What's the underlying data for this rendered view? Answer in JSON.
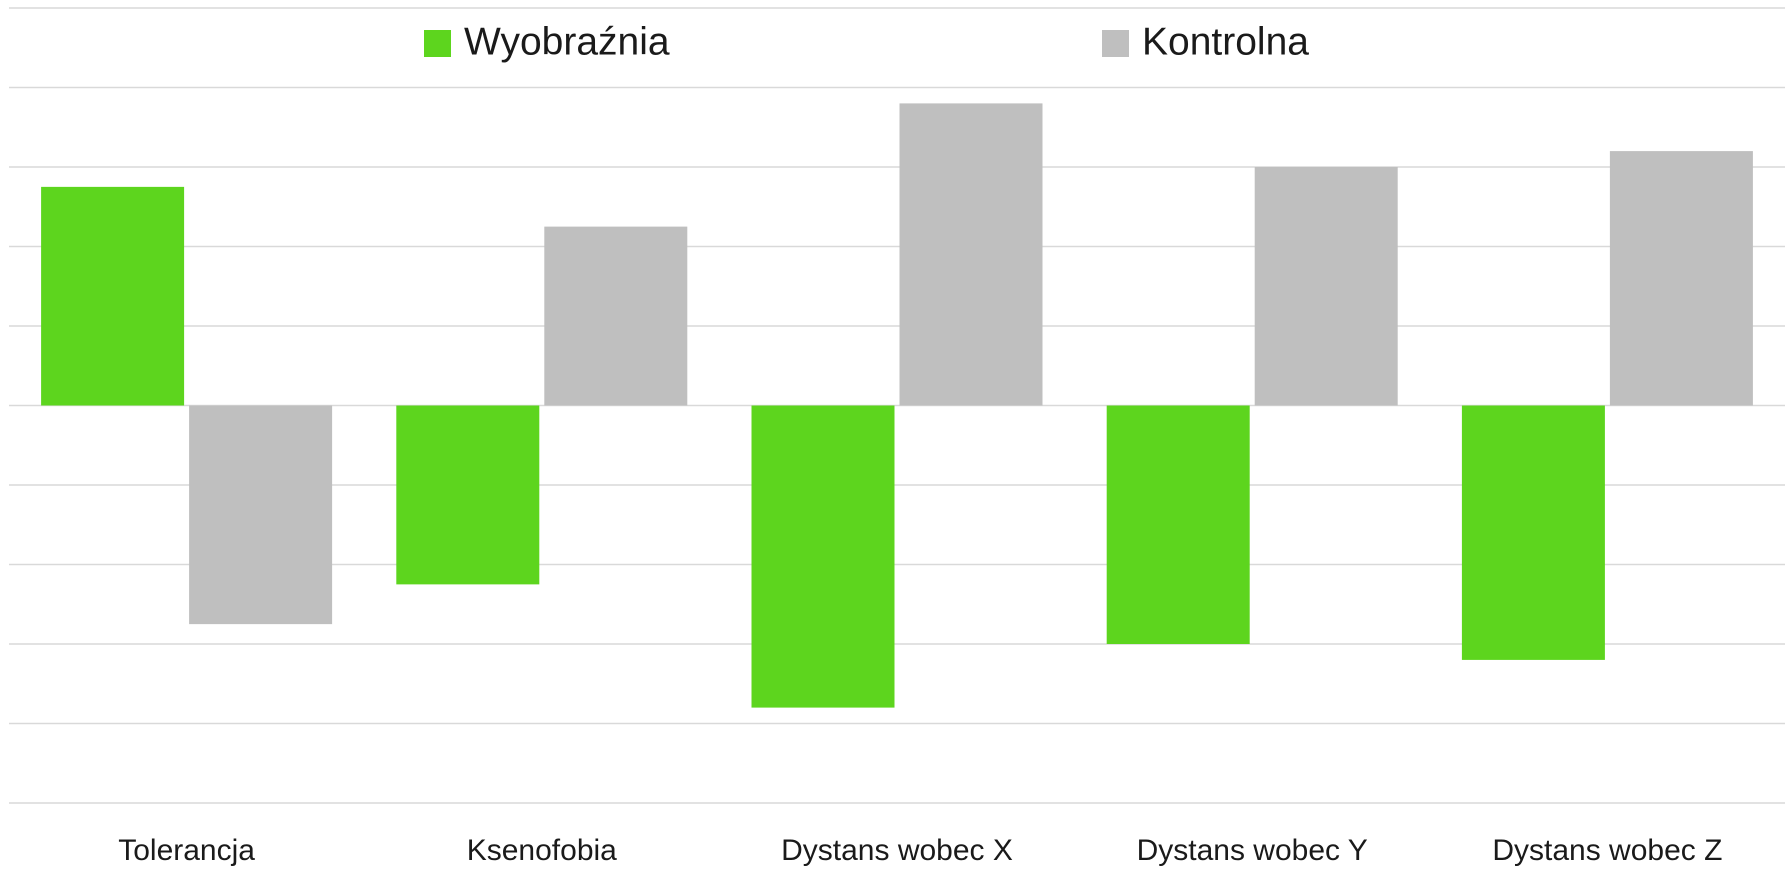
{
  "chart_data": {
    "type": "bar",
    "categories": [
      "Tolerancja",
      "Ksenofobia",
      "Dystans wobec X",
      "Dystans wobec Y",
      "Dystans wobec Z"
    ],
    "series": [
      {
        "name": "Wyobraźnia",
        "color": "#5dd51e",
        "values": [
          2.75,
          -2.25,
          -3.8,
          -3.0,
          -3.2
        ]
      },
      {
        "name": "Kontrolna",
        "color": "#bfbfbf",
        "values": [
          -2.75,
          2.25,
          3.8,
          3.0,
          3.2
        ]
      }
    ],
    "ylim": [
      -5,
      5
    ],
    "yticks": [
      -5,
      -4,
      -3,
      -2,
      -1,
      0,
      1,
      2,
      3,
      4,
      5
    ],
    "grid": true,
    "legend": "top"
  }
}
